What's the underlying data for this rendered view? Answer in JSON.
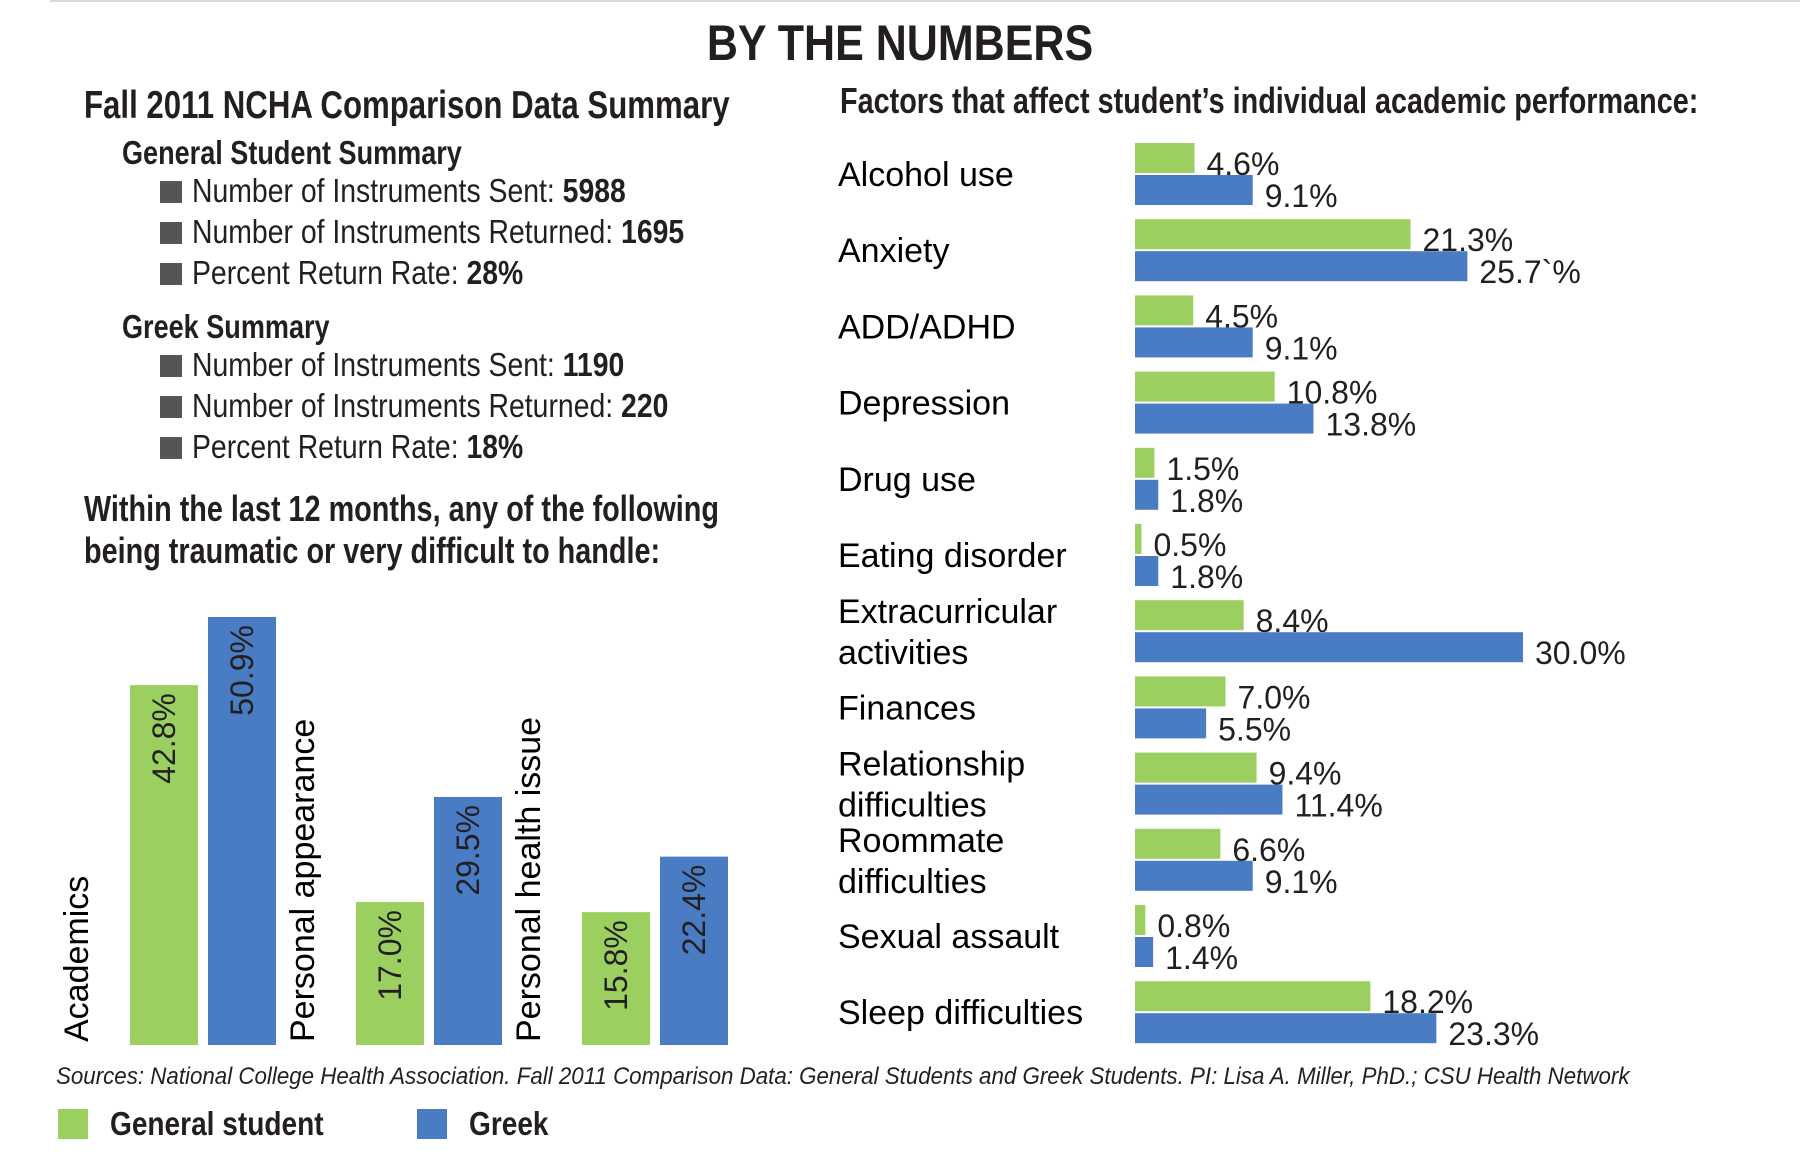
{
  "title": "BY THE NUMBERS",
  "summary": {
    "heading": "Fall 2011 NCHA Comparison Data Summary",
    "general": {
      "heading": "General Student Summary",
      "items": [
        {
          "label": "Number of Instruments Sent:",
          "value": "5988"
        },
        {
          "label": "Number of Instruments Returned:",
          "value": "1695"
        },
        {
          "label": "Percent Return Rate:",
          "value": "28%"
        }
      ]
    },
    "greek": {
      "heading": "Greek Summary",
      "items": [
        {
          "label": "Number of Instruments Sent:",
          "value": "1190"
        },
        {
          "label": "Number of Instruments Returned:",
          "value": "220"
        },
        {
          "label": "Percent Return Rate:",
          "value": "18%"
        }
      ]
    }
  },
  "colors": {
    "general": "#9bcf5f",
    "greek": "#4a7cc4"
  },
  "chart_data": [
    {
      "type": "bar",
      "orientation": "vertical",
      "title_lines": [
        "Within the last 12 months, any of the following",
        "being traumatic or very difficult to handle:"
      ],
      "categories": [
        "Academics",
        "Personal appearance",
        "Personal health issue"
      ],
      "series": [
        {
          "name": "General student",
          "values": [
            42.8,
            17.0,
            15.8
          ],
          "labels": [
            "42.8%",
            "17.0%",
            "15.8%"
          ]
        },
        {
          "name": "Greek",
          "values": [
            50.9,
            29.5,
            22.4
          ],
          "labels": [
            "50.9%",
            "29.5%",
            "22.4%"
          ]
        }
      ],
      "ylim": [
        0,
        50.9
      ],
      "grid": false
    },
    {
      "type": "bar",
      "orientation": "horizontal",
      "title": "Factors that affect student’s individual academic performance:",
      "categories": [
        [
          "Alcohol use"
        ],
        [
          "Anxiety"
        ],
        [
          "ADD/ADHD"
        ],
        [
          "Depression"
        ],
        [
          "Drug use"
        ],
        [
          "Eating disorder"
        ],
        [
          "Extracurricular",
          "activities"
        ],
        [
          "Finances"
        ],
        [
          "Relationship",
          "difficulties"
        ],
        [
          "Roommate",
          "difficulties"
        ],
        [
          "Sexual assault"
        ],
        [
          "Sleep difficulties"
        ]
      ],
      "series": [
        {
          "name": "General student",
          "values": [
            4.6,
            21.3,
            4.5,
            10.8,
            1.5,
            0.5,
            8.4,
            7.0,
            9.4,
            6.6,
            0.8,
            18.2
          ],
          "labels": [
            "4.6%",
            "21.3%",
            "4.5%",
            "10.8%",
            "1.5%",
            "0.5%",
            "8.4%",
            "7.0%",
            "9.4%",
            "6.6%",
            "0.8%",
            "18.2%"
          ]
        },
        {
          "name": "Greek",
          "values": [
            9.1,
            25.7,
            9.1,
            13.8,
            1.8,
            1.8,
            30.0,
            5.5,
            11.4,
            9.1,
            1.4,
            23.3
          ],
          "labels": [
            "9.1%",
            "25.7`%",
            "9.1%",
            "13.8%",
            "1.8%",
            "1.8%",
            "30.0%",
            "5.5%",
            "11.4%",
            "9.1%",
            "1.4%",
            "23.3%"
          ]
        }
      ],
      "xlim": [
        0,
        30
      ],
      "grid": false
    }
  ],
  "source": "Sources: National College Health Association. Fall 2011 Comparison Data: General Students and Greek Students. PI: Lisa A. Miller, PhD.; CSU Health Network",
  "legend": [
    {
      "label": "General student",
      "color": "#9bcf5f"
    },
    {
      "label": "Greek",
      "color": "#4a7cc4"
    }
  ]
}
